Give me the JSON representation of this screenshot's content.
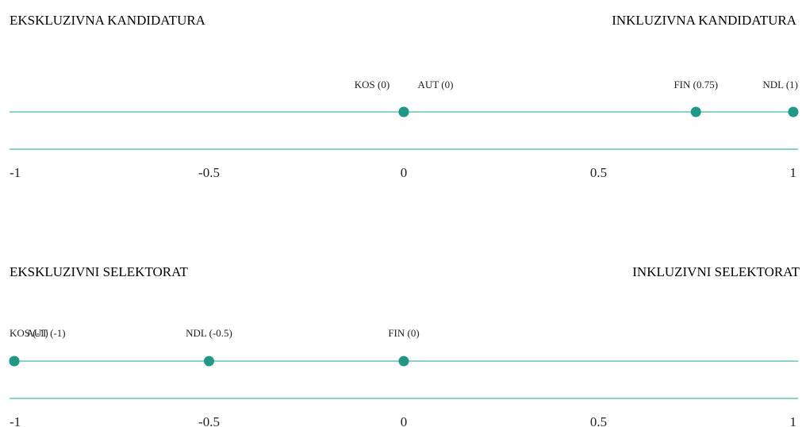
{
  "scales": [
    {
      "left_heading": "EKSKLUZIVNA KANDIDATURA",
      "right_heading": "INKLUZIVNA KANDIDATURA",
      "axis": {
        "min": -1,
        "max": 1
      },
      "ticks": [
        {
          "value": -1,
          "label": "-1"
        },
        {
          "value": -0.5,
          "label": "-0.5"
        },
        {
          "value": 0,
          "label": "0"
        },
        {
          "value": 0.5,
          "label": "0.5"
        },
        {
          "value": 1,
          "label": "1"
        }
      ],
      "points": [
        {
          "value": 0,
          "label": "KOS (0)",
          "label_offset": -1
        },
        {
          "value": 0,
          "label": "AUT (0)",
          "label_offset": 1
        },
        {
          "value": 0.75,
          "label": "FIN (0.75)",
          "label_offset": 0
        },
        {
          "value": 1,
          "label": "NDL (1)",
          "label_offset": 0
        }
      ]
    },
    {
      "left_heading": "EKSKLUZIVNI SELEKTORAT",
      "right_heading": "INKLUZIVNI SELEKTORAT",
      "axis": {
        "min": -1,
        "max": 1
      },
      "ticks": [
        {
          "value": -1,
          "label": "-1"
        },
        {
          "value": -0.5,
          "label": "-0.5"
        },
        {
          "value": 0,
          "label": "0"
        },
        {
          "value": 0.5,
          "label": "0.5"
        },
        {
          "value": 1,
          "label": "1"
        }
      ],
      "points": [
        {
          "value": -1,
          "label": "KOS (-1)",
          "label_offset": 0
        },
        {
          "value": -1,
          "label": "AUT (-1)",
          "label_offset": 1
        },
        {
          "value": -0.5,
          "label": "NDL (-0.5)",
          "label_offset": 0
        },
        {
          "value": 0,
          "label": "FIN (0)",
          "label_offset": 0
        }
      ]
    }
  ],
  "colors": {
    "line": "#8fd1c9",
    "dot": "#1f9886",
    "text": "#222222"
  }
}
